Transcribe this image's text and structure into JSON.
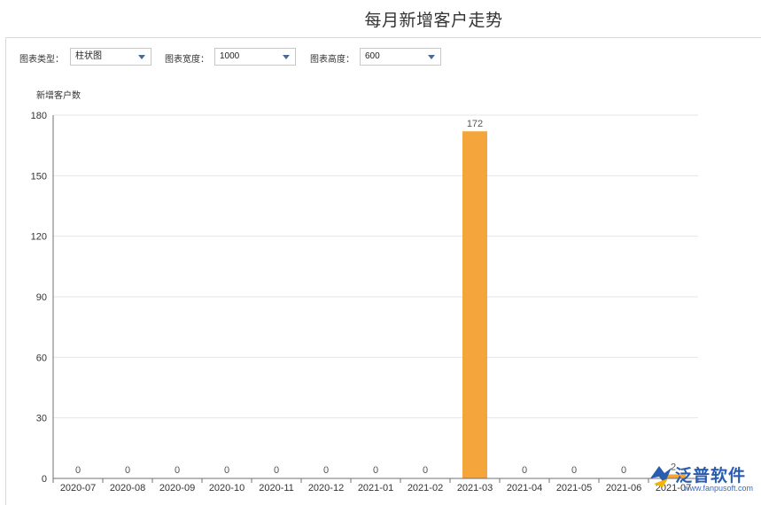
{
  "page_title": "每月新增客户走势",
  "controls": [
    {
      "label": "图表类型：",
      "value": "柱状图"
    },
    {
      "label": "图表宽度：",
      "value": "1000"
    },
    {
      "label": "图表高度：",
      "value": "600"
    }
  ],
  "watermark": {
    "brand": "泛普软件",
    "url": "www.fanpusoft.com"
  },
  "colors": {
    "bar": "#f4a53c",
    "axis": "#6e7079",
    "grid": "#e6e6e6"
  },
  "chart_data": {
    "type": "bar",
    "title": "每月新增客户走势",
    "ylabel": "新增客户数",
    "xlabel": "",
    "ylim": [
      0,
      180
    ],
    "yticks": [
      0,
      30,
      60,
      90,
      120,
      150,
      180
    ],
    "grid": true,
    "categories": [
      "2020-07",
      "2020-08",
      "2020-09",
      "2020-10",
      "2020-11",
      "2020-12",
      "2021-01",
      "2021-02",
      "2021-03",
      "2021-04",
      "2021-05",
      "2021-06",
      "2021-07"
    ],
    "values": [
      0,
      0,
      0,
      0,
      0,
      0,
      0,
      0,
      172,
      0,
      0,
      0,
      2
    ],
    "data_labels": [
      "0",
      "0",
      "0",
      "0",
      "0",
      "0",
      "0",
      "0",
      "172",
      "0",
      "0",
      "0",
      "2"
    ]
  }
}
